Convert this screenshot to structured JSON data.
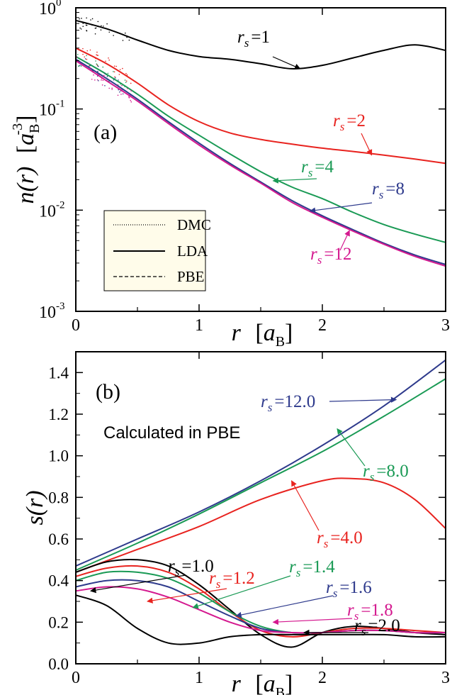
{
  "colors": {
    "black": "#000000",
    "red": "#e8231f",
    "green": "#1a9a55",
    "blue": "#2e3a8c",
    "magenta": "#d4198f",
    "legend_bg": "#fffcea"
  },
  "chart_data": [
    {
      "id": "a",
      "type": "line",
      "panel_label": "(a)",
      "xlabel": "r",
      "xlabel_unit": "a",
      "xlabel_unit_sub": "B",
      "ylabel": "n(r)",
      "ylabel_unit": "a",
      "ylabel_unit_sub": "B",
      "ylabel_unit_sup": "-3",
      "xlim": [
        0,
        3
      ],
      "ylim": [
        0.001,
        1
      ],
      "yscale": "log",
      "x_ticks": [
        "0",
        "1",
        "2",
        "3"
      ],
      "y_ticks": [
        {
          "base": "10",
          "exp": "0",
          "value": 1
        },
        {
          "base": "10",
          "exp": "-1",
          "value": 0.1
        },
        {
          "base": "10",
          "exp": "-2",
          "value": 0.01
        },
        {
          "base": "10",
          "exp": "-3",
          "value": 0.001
        }
      ],
      "legend": [
        {
          "label": "DMC",
          "style": "dotted"
        },
        {
          "label": "LDA",
          "style": "solid"
        },
        {
          "label": "PBE",
          "style": "dashed"
        }
      ],
      "series": [
        {
          "name": "rs=1",
          "color": "black",
          "x": [
            0,
            0.25,
            0.5,
            0.75,
            1.0,
            1.25,
            1.5,
            1.75,
            2.0,
            2.25,
            2.5,
            2.75,
            3.0
          ],
          "y": [
            0.75,
            0.62,
            0.48,
            0.38,
            0.33,
            0.31,
            0.28,
            0.25,
            0.27,
            0.32,
            0.38,
            0.43,
            0.38
          ]
        },
        {
          "name": "rs=2",
          "color": "red",
          "x": [
            0,
            0.25,
            0.5,
            0.75,
            1.0,
            1.25,
            1.5,
            1.75,
            2.0,
            2.25,
            2.5,
            2.75,
            3.0
          ],
          "y": [
            0.4,
            0.28,
            0.18,
            0.11,
            0.075,
            0.058,
            0.05,
            0.045,
            0.041,
            0.038,
            0.035,
            0.032,
            0.029
          ]
        },
        {
          "name": "rs=4",
          "color": "green",
          "x": [
            0,
            0.25,
            0.5,
            0.75,
            1.0,
            1.25,
            1.5,
            1.75,
            2.0,
            2.25,
            2.5,
            2.75,
            3.0
          ],
          "y": [
            0.33,
            0.22,
            0.14,
            0.085,
            0.055,
            0.036,
            0.024,
            0.017,
            0.013,
            0.0095,
            0.0072,
            0.0058,
            0.0048
          ]
        },
        {
          "name": "rs=8",
          "color": "blue",
          "x": [
            0,
            0.25,
            0.5,
            0.75,
            1.0,
            1.25,
            1.5,
            1.75,
            2.0,
            2.25,
            2.5,
            2.75,
            3.0
          ],
          "y": [
            0.31,
            0.2,
            0.125,
            0.075,
            0.046,
            0.029,
            0.019,
            0.0125,
            0.0088,
            0.0064,
            0.0047,
            0.0036,
            0.0029
          ]
        },
        {
          "name": "rs=12",
          "color": "magenta",
          "x": [
            0,
            0.25,
            0.5,
            0.75,
            1.0,
            1.25,
            1.5,
            1.75,
            2.0,
            2.25,
            2.5,
            2.75,
            3.0
          ],
          "y": [
            0.3,
            0.19,
            0.12,
            0.072,
            0.044,
            0.028,
            0.0185,
            0.012,
            0.0085,
            0.0062,
            0.0046,
            0.0035,
            0.0028
          ]
        }
      ],
      "annotations": [
        {
          "series": "rs=1",
          "base": "r",
          "sub": "s",
          "text": "=1",
          "color": "black",
          "at": [
            1.82,
            0.25
          ]
        },
        {
          "series": "rs=2",
          "base": "r",
          "sub": "s",
          "text": "=2",
          "color": "red",
          "at": [
            2.4,
            0.035
          ]
        },
        {
          "series": "rs=4",
          "base": "r",
          "sub": "s",
          "text": "=4",
          "color": "green",
          "at": [
            1.6,
            0.0195
          ]
        },
        {
          "series": "rs=8",
          "base": "r",
          "sub": "s",
          "text": "=8",
          "color": "blue",
          "at": [
            1.9,
            0.0098
          ]
        },
        {
          "series": "rs=12",
          "base": "r",
          "sub": "s",
          "text": "=12",
          "color": "magenta",
          "at": [
            2.22,
            0.0063
          ]
        }
      ]
    },
    {
      "id": "b",
      "type": "line",
      "panel_label": "(b)",
      "subtitle": "Calculated in PBE",
      "xlabel": "r",
      "xlabel_unit": "a",
      "xlabel_unit_sub": "B",
      "ylabel": "s(r)",
      "xlim": [
        0,
        3
      ],
      "ylim": [
        0,
        1.5
      ],
      "x_ticks": [
        "0",
        "1",
        "2",
        "3"
      ],
      "y_ticks": [
        "0.0",
        "0.2",
        "0.4",
        "0.6",
        "0.8",
        "1.0",
        "1.2",
        "1.4"
      ],
      "series": [
        {
          "name": "rs=12.0",
          "color": "blue",
          "x": [
            0,
            0.5,
            1.0,
            1.5,
            2.0,
            2.5,
            3.0
          ],
          "y": [
            0.47,
            0.6,
            0.73,
            0.88,
            1.05,
            1.24,
            1.46
          ]
        },
        {
          "name": "rs=8.0",
          "color": "green",
          "x": [
            0,
            0.5,
            1.0,
            1.5,
            2.0,
            2.5,
            3.0
          ],
          "y": [
            0.45,
            0.58,
            0.72,
            0.87,
            1.02,
            1.19,
            1.37
          ]
        },
        {
          "name": "rs=4.0",
          "color": "red",
          "x": [
            0,
            0.5,
            1.0,
            1.5,
            2.0,
            2.25,
            2.5,
            2.75,
            3.0
          ],
          "y": [
            0.44,
            0.55,
            0.66,
            0.79,
            0.88,
            0.89,
            0.87,
            0.79,
            0.65
          ]
        },
        {
          "name": "rs=1.0",
          "color": "black",
          "x": [
            0,
            0.25,
            0.5,
            0.75,
            1.0,
            1.25,
            1.5,
            1.75,
            2.0,
            2.25,
            2.5,
            2.75,
            3.0
          ],
          "y": [
            0.44,
            0.49,
            0.5,
            0.47,
            0.38,
            0.26,
            0.14,
            0.08,
            0.15,
            0.18,
            0.17,
            0.15,
            0.14
          ]
        },
        {
          "name": "rs=1.2",
          "color": "red",
          "x": [
            0,
            0.25,
            0.5,
            0.75,
            1.0,
            1.25,
            1.5,
            1.75,
            2.0,
            2.25,
            2.5,
            2.75,
            3.0
          ],
          "y": [
            0.42,
            0.46,
            0.47,
            0.44,
            0.36,
            0.25,
            0.16,
            0.13,
            0.15,
            0.17,
            0.17,
            0.16,
            0.15
          ]
        },
        {
          "name": "rs=1.4",
          "color": "green",
          "x": [
            0,
            0.25,
            0.5,
            0.75,
            1.0,
            1.25,
            1.5,
            1.75,
            2.0,
            2.25,
            2.5,
            2.75,
            3.0
          ],
          "y": [
            0.4,
            0.44,
            0.44,
            0.41,
            0.34,
            0.25,
            0.18,
            0.15,
            0.15,
            0.16,
            0.16,
            0.15,
            0.15
          ]
        },
        {
          "name": "rs=1.6",
          "color": "blue",
          "x": [
            0,
            0.25,
            0.5,
            0.75,
            1.0,
            1.25,
            1.5,
            1.75,
            2.0,
            2.25,
            2.5,
            2.75,
            3.0
          ],
          "y": [
            0.37,
            0.4,
            0.4,
            0.37,
            0.3,
            0.23,
            0.17,
            0.15,
            0.15,
            0.16,
            0.16,
            0.15,
            0.15
          ]
        },
        {
          "name": "rs=1.8",
          "color": "magenta",
          "x": [
            0,
            0.25,
            0.5,
            0.75,
            1.0,
            1.25,
            1.5,
            1.75,
            2.0,
            2.25,
            2.5,
            2.75,
            3.0
          ],
          "y": [
            0.35,
            0.37,
            0.36,
            0.32,
            0.26,
            0.2,
            0.16,
            0.15,
            0.15,
            0.16,
            0.16,
            0.15,
            0.15
          ]
        },
        {
          "name": "rs=2.0",
          "color": "black",
          "x": [
            0,
            0.25,
            0.5,
            0.75,
            1.0,
            1.25,
            1.5,
            1.75,
            2.0,
            2.25,
            2.5,
            2.75,
            3.0
          ],
          "y": [
            0.33,
            0.28,
            0.17,
            0.1,
            0.1,
            0.13,
            0.14,
            0.14,
            0.14,
            0.14,
            0.14,
            0.13,
            0.13
          ]
        }
      ],
      "annotations": [
        {
          "series": "rs=12.0",
          "base": "r",
          "sub": "s",
          "text": "=12.0",
          "color": "blue",
          "at": [
            2.6,
            1.27
          ]
        },
        {
          "series": "rs=8.0",
          "base": "r",
          "sub": "s",
          "text": "=8.0",
          "color": "green",
          "at": [
            2.12,
            1.13
          ]
        },
        {
          "series": "rs=4.0",
          "base": "r",
          "sub": "s",
          "text": "=4.0",
          "color": "red",
          "at": [
            1.75,
            0.88
          ]
        },
        {
          "series": "rs=1.0",
          "base": "r",
          "sub": "s",
          "text": "=1.0",
          "color": "black",
          "at": [
            0.12,
            0.35
          ]
        },
        {
          "series": "rs=1.2",
          "base": "r",
          "sub": "s",
          "text": "=1.2",
          "color": "red",
          "at": [
            0.58,
            0.3
          ]
        },
        {
          "series": "rs=1.4",
          "base": "r",
          "sub": "s",
          "text": "=1.4",
          "color": "green",
          "at": [
            0.95,
            0.27
          ]
        },
        {
          "series": "rs=1.6",
          "base": "r",
          "sub": "s",
          "text": "=1.6",
          "color": "blue",
          "at": [
            1.3,
            0.23
          ]
        },
        {
          "series": "rs=1.8",
          "base": "r",
          "sub": "s",
          "text": "=1.8",
          "color": "magenta",
          "at": [
            1.6,
            0.2
          ]
        },
        {
          "series": "rs=2.0",
          "base": "r",
          "sub": "s",
          "text": "=2.0",
          "color": "black",
          "at": [
            1.85,
            0.15
          ]
        }
      ]
    }
  ]
}
